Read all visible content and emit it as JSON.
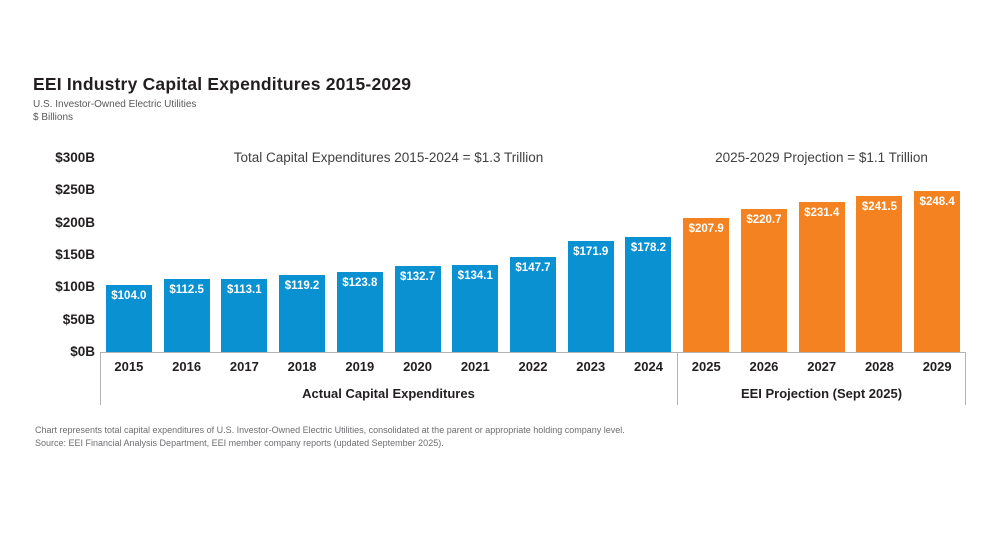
{
  "header": {
    "title": "EEI Industry Capital Expenditures 2015-2029",
    "subtitle": "U.S. Investor-Owned Electric Utilities",
    "units_label": "$ Billions"
  },
  "annotations": {
    "actual_total": "Total Capital Expenditures 2015-2024 = $1.3 Trillion",
    "projection_total": "2025-2029 Projection = $1.1 Trillion"
  },
  "chart_data": {
    "type": "bar",
    "title": "EEI Industry Capital Expenditures 2015-2029",
    "xlabel": "",
    "ylabel": "$ Billions",
    "ylim": [
      0,
      300
    ],
    "grid": false,
    "y_ticks": [
      "$300B",
      "$250B",
      "$200B",
      "$150B",
      "$100B",
      "$50B",
      "$0B"
    ],
    "categories": [
      "2015",
      "2016",
      "2017",
      "2018",
      "2019",
      "2020",
      "2021",
      "2022",
      "2023",
      "2024",
      "2025",
      "2026",
      "2027",
      "2028",
      "2029"
    ],
    "values": [
      104.0,
      112.5,
      113.1,
      119.2,
      123.8,
      132.7,
      134.1,
      147.7,
      171.9,
      178.2,
      207.9,
      220.7,
      231.4,
      241.5,
      248.4
    ],
    "bar_labels": [
      "$104.0",
      "$112.5",
      "$113.1",
      "$119.2",
      "$123.8",
      "$132.7",
      "$134.1",
      "$147.7",
      "$171.9",
      "$178.2",
      "$207.9",
      "$220.7",
      "$231.4",
      "$241.5",
      "$248.4"
    ],
    "groups": [
      {
        "label": "Actual Capital Expenditures",
        "years": "2015-2024",
        "count": 10,
        "color": "#0a91d2"
      },
      {
        "label": "EEI Projection (Sept 2025)",
        "years": "2025-2029",
        "count": 5,
        "color": "#f58220"
      }
    ]
  },
  "footnotes": {
    "line1": "Chart represents total capital expenditures of U.S. Investor-Owned Electric Utilities, consolidated at the parent or appropriate holding company level.",
    "line2": "Source: EEI Financial Analysis Department, EEI member company reports (updated September 2025)."
  }
}
